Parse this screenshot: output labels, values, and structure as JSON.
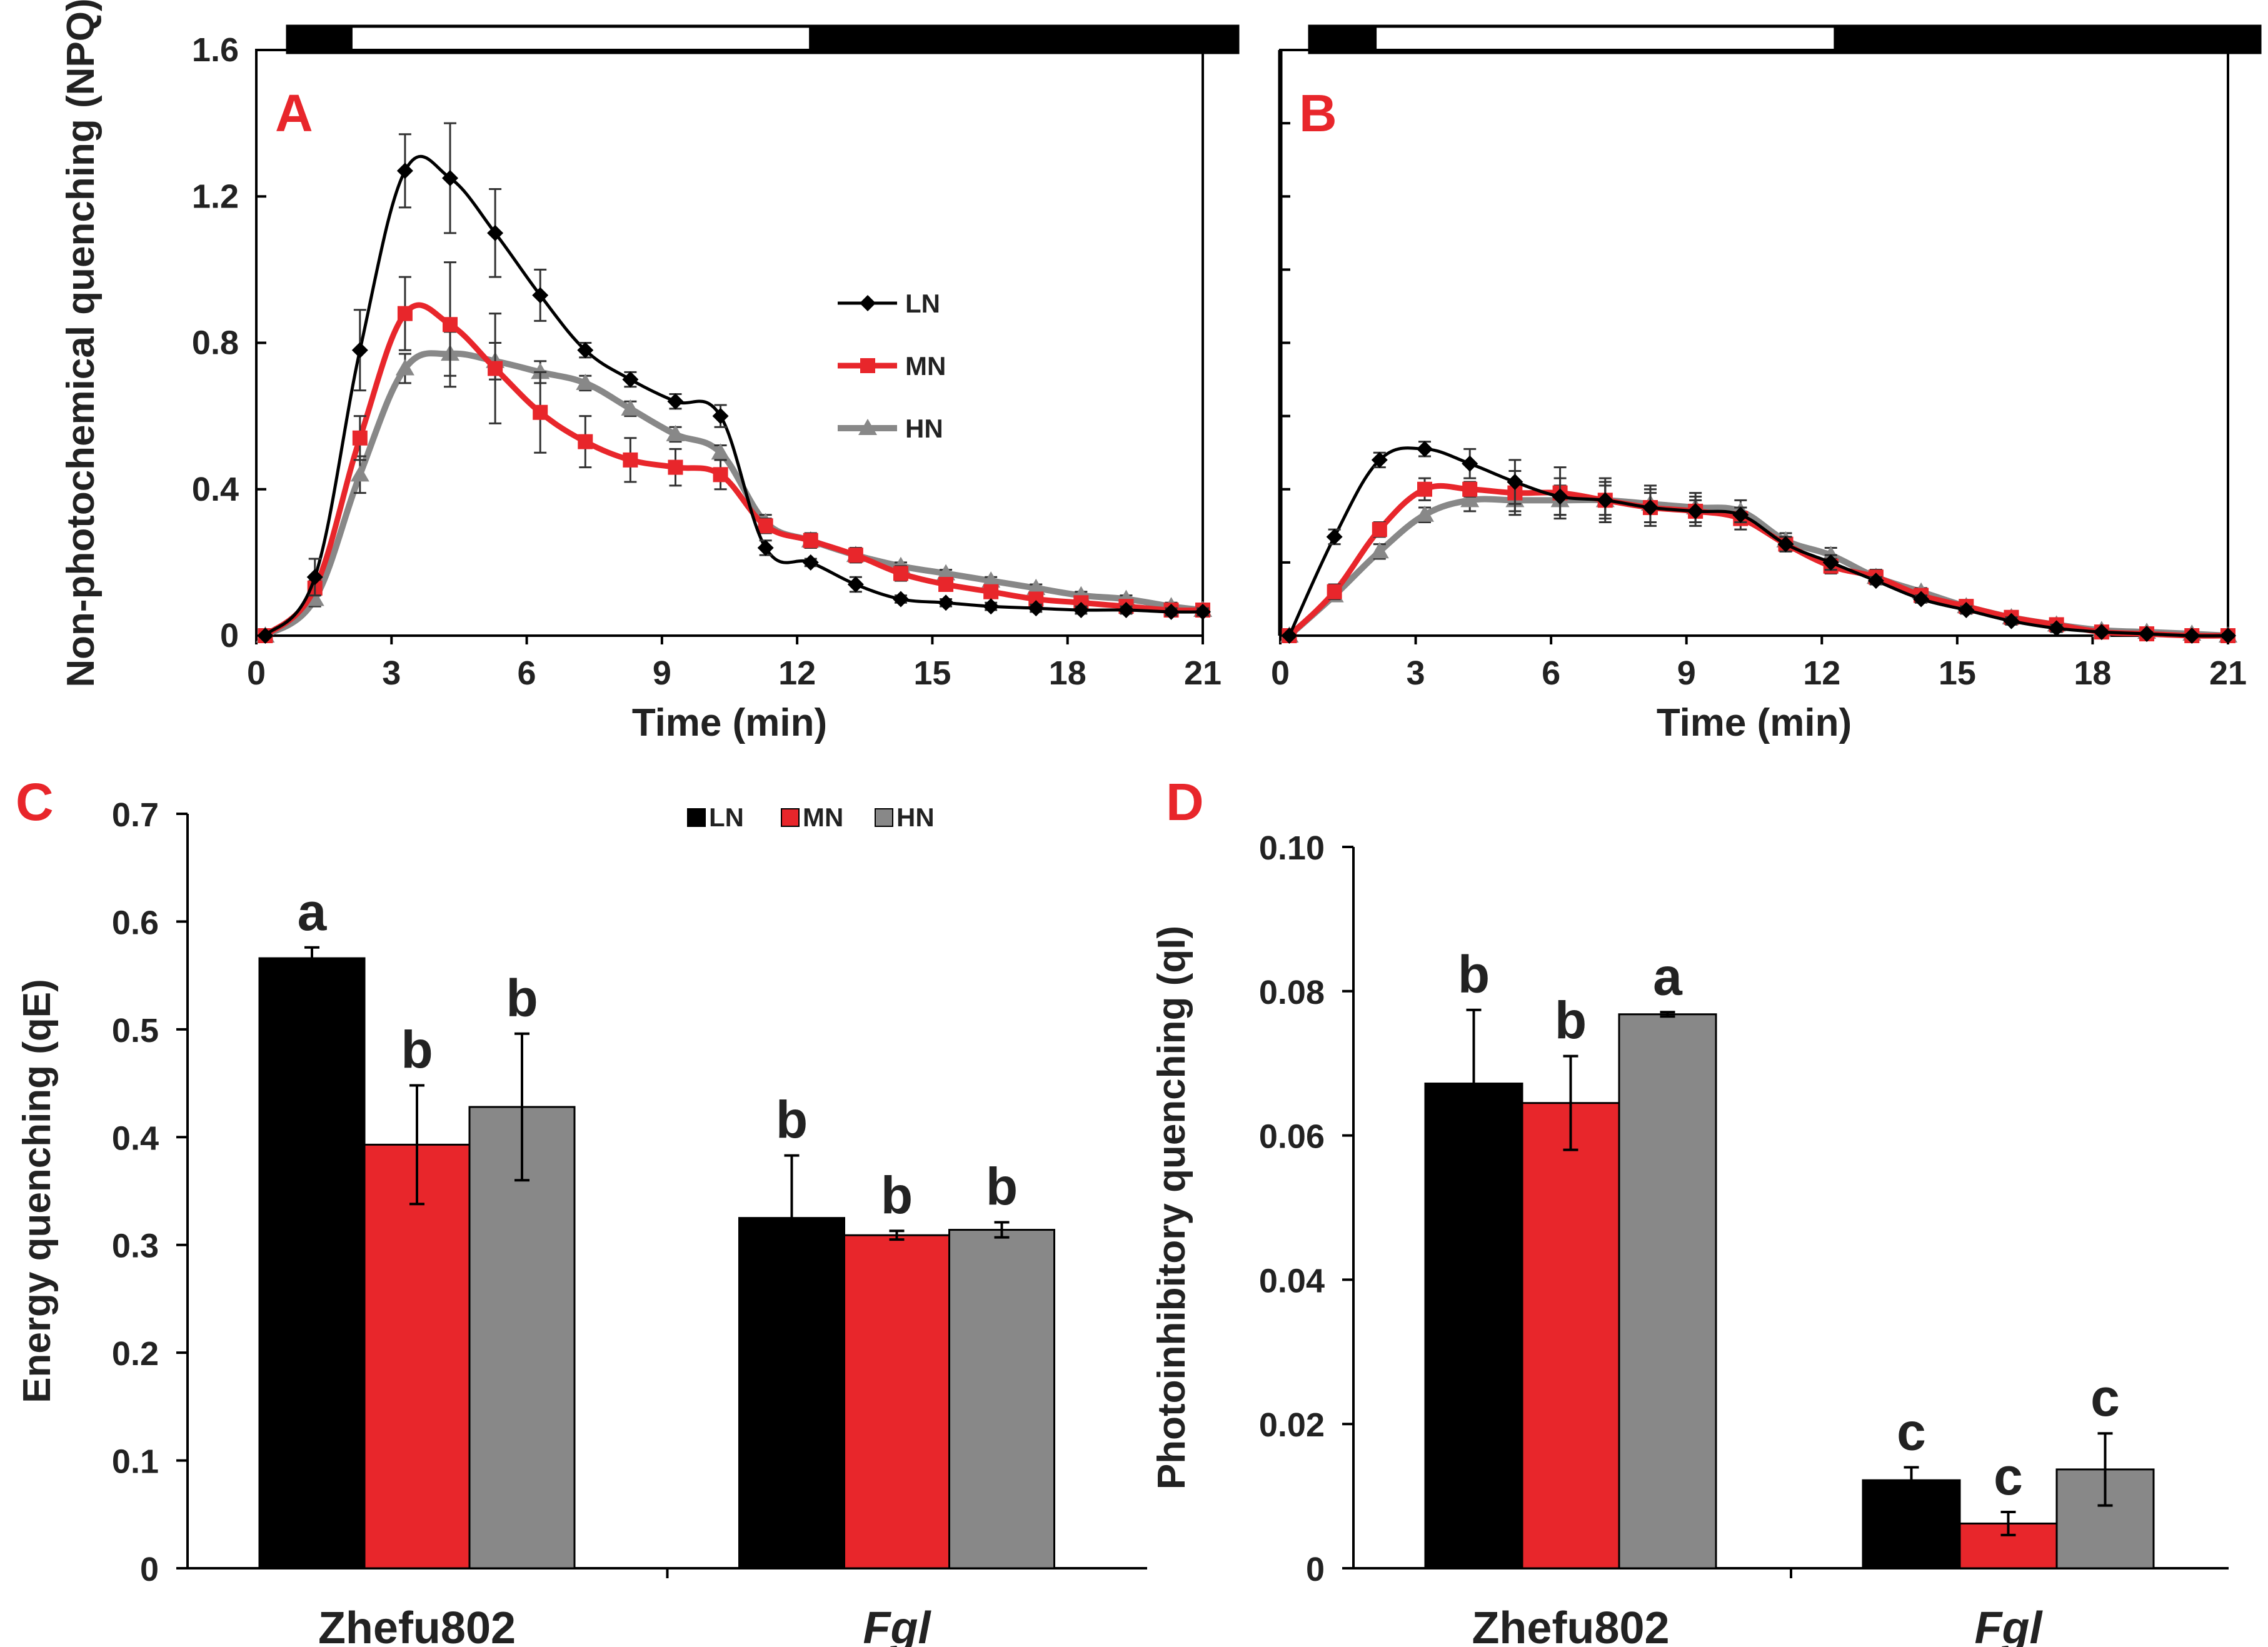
{
  "colors": {
    "LN": "#000000",
    "MN": "#e8262b",
    "HN": "#888888"
  },
  "chart_data": [
    {
      "panel": "A",
      "type": "line",
      "ylabel": "Non-photochemical quenching (NPQ)",
      "xlabel": "Time (min)",
      "xlim": [
        0,
        21
      ],
      "ylim": [
        0,
        1.6
      ],
      "xticks": [
        0,
        3,
        6,
        9,
        12,
        15,
        18,
        21
      ],
      "yticks": [
        0,
        0.4,
        0.8,
        1.2,
        1.6
      ],
      "ytick_labels": [
        "0",
        "0.4",
        "0.8",
        "1.2",
        "1.6"
      ],
      "light_bar": [
        {
          "state": "dark",
          "from": 0.7,
          "to": 2.1
        },
        {
          "state": "light",
          "from": 2.1,
          "to": 12.3
        },
        {
          "state": "dark",
          "from": 12.3,
          "to": 21
        }
      ],
      "x": [
        0.2,
        1.3,
        2.3,
        3.3,
        4.3,
        5.3,
        6.3,
        7.3,
        8.3,
        9.3,
        10.3,
        11.3,
        12.3,
        13.3,
        14.3,
        15.3,
        16.3,
        17.3,
        18.3,
        19.3,
        20.3,
        21
      ],
      "series": [
        {
          "name": "LN",
          "marker": "diamond",
          "values": [
            0.0,
            0.16,
            0.78,
            1.27,
            1.25,
            1.1,
            0.93,
            0.78,
            0.7,
            0.64,
            0.6,
            0.24,
            0.2,
            0.14,
            0.1,
            0.09,
            0.08,
            0.075,
            0.07,
            0.07,
            0.065,
            0.065
          ],
          "errors": [
            0.0,
            0.05,
            0.11,
            0.1,
            0.15,
            0.12,
            0.07,
            0.02,
            0.02,
            0.02,
            0.03,
            0.02,
            0.01,
            0.02,
            0.01,
            0.01,
            0.01,
            0.01,
            0.01,
            0.01,
            0.01,
            0.01
          ]
        },
        {
          "name": "MN",
          "marker": "square",
          "values": [
            0.0,
            0.13,
            0.54,
            0.88,
            0.85,
            0.73,
            0.61,
            0.53,
            0.48,
            0.46,
            0.44,
            0.3,
            0.26,
            0.22,
            0.17,
            0.14,
            0.12,
            0.1,
            0.09,
            0.08,
            0.07,
            0.07
          ],
          "errors": [
            0.0,
            0.02,
            0.06,
            0.1,
            0.17,
            0.15,
            0.11,
            0.07,
            0.06,
            0.05,
            0.04,
            0.02,
            0.02,
            0.02,
            0.02,
            0.01,
            0.01,
            0.01,
            0.01,
            0.01,
            0.01,
            0.01
          ]
        },
        {
          "name": "HN",
          "marker": "triangle",
          "values": [
            0.0,
            0.1,
            0.44,
            0.73,
            0.77,
            0.75,
            0.72,
            0.69,
            0.62,
            0.55,
            0.5,
            0.31,
            0.26,
            0.22,
            0.19,
            0.17,
            0.15,
            0.13,
            0.11,
            0.1,
            0.08,
            0.07
          ],
          "errors": [
            0.0,
            0.02,
            0.05,
            0.04,
            0.06,
            0.05,
            0.03,
            0.02,
            0.02,
            0.02,
            0.02,
            0.02,
            0.02,
            0.01,
            0.01,
            0.01,
            0.01,
            0.01,
            0.01,
            0.01,
            0.01,
            0.01
          ]
        }
      ],
      "legend": {
        "entries": [
          "LN",
          "MN",
          "HN"
        ],
        "placement": "center-right"
      }
    },
    {
      "panel": "B",
      "type": "line",
      "ylabel": "",
      "xlabel": "Time (min)",
      "xlim": [
        0,
        21
      ],
      "ylim": [
        0,
        1.6
      ],
      "xticks": [
        0,
        3,
        6,
        9,
        12,
        15,
        18,
        21
      ],
      "yticks": [
        0,
        0.2,
        0.4,
        0.6,
        0.8,
        1.0,
        1.2,
        1.4,
        1.6
      ],
      "light_bar": [
        {
          "state": "dark",
          "from": 0.7,
          "to": 2.1
        },
        {
          "state": "light",
          "from": 2.1,
          "to": 12.3
        },
        {
          "state": "dark",
          "from": 12.3,
          "to": 21
        }
      ],
      "x": [
        0.2,
        1.2,
        2.2,
        3.2,
        4.2,
        5.2,
        6.2,
        7.2,
        8.2,
        9.2,
        10.2,
        11.2,
        12.2,
        13.2,
        14.2,
        15.2,
        16.2,
        17.2,
        18.2,
        19.2,
        20.2,
        21
      ],
      "series": [
        {
          "name": "LN",
          "marker": "diamond",
          "values": [
            0.0,
            0.27,
            0.48,
            0.51,
            0.47,
            0.42,
            0.38,
            0.37,
            0.35,
            0.34,
            0.33,
            0.25,
            0.2,
            0.15,
            0.1,
            0.07,
            0.04,
            0.02,
            0.01,
            0.005,
            0.0,
            0.0
          ],
          "errors": [
            0.0,
            0.02,
            0.02,
            0.02,
            0.04,
            0.06,
            0.05,
            0.04,
            0.04,
            0.03,
            0.02,
            0.02,
            0.02,
            0.01,
            0.01,
            0.01,
            0.01,
            0.01,
            0.005,
            0.005,
            0.005,
            0.005
          ]
        },
        {
          "name": "MN",
          "marker": "square",
          "values": [
            0.0,
            0.12,
            0.29,
            0.4,
            0.4,
            0.39,
            0.39,
            0.37,
            0.35,
            0.34,
            0.32,
            0.25,
            0.19,
            0.16,
            0.11,
            0.08,
            0.05,
            0.03,
            0.01,
            0.005,
            0.0,
            0.0
          ],
          "errors": [
            0.0,
            0.02,
            0.02,
            0.03,
            0.02,
            0.06,
            0.07,
            0.06,
            0.05,
            0.04,
            0.03,
            0.02,
            0.02,
            0.02,
            0.01,
            0.01,
            0.01,
            0.01,
            0.005,
            0.005,
            0.005,
            0.005
          ]
        },
        {
          "name": "HN",
          "marker": "triangle",
          "values": [
            0.0,
            0.11,
            0.23,
            0.33,
            0.37,
            0.37,
            0.37,
            0.37,
            0.36,
            0.35,
            0.34,
            0.26,
            0.22,
            0.16,
            0.12,
            0.08,
            0.05,
            0.03,
            0.015,
            0.01,
            0.005,
            0.0
          ],
          "errors": [
            0.0,
            0.01,
            0.02,
            0.02,
            0.03,
            0.03,
            0.04,
            0.05,
            0.05,
            0.04,
            0.03,
            0.02,
            0.02,
            0.02,
            0.01,
            0.01,
            0.01,
            0.01,
            0.005,
            0.005,
            0.005,
            0.005
          ]
        }
      ]
    },
    {
      "panel": "C",
      "type": "bar",
      "ylabel": "Energy quenching (qE)",
      "categories": [
        "Zhefu802",
        "Fgl"
      ],
      "category_italic": [
        false,
        true
      ],
      "ylim": [
        0,
        0.7
      ],
      "yticks": [
        0,
        0.1,
        0.2,
        0.3,
        0.4,
        0.5,
        0.6,
        0.7
      ],
      "ytick_labels": [
        "0",
        "0.1",
        "0.2",
        "0.3",
        "0.4",
        "0.5",
        "0.6",
        "0.7"
      ],
      "series": [
        {
          "name": "LN",
          "values": [
            0.566,
            0.325
          ],
          "errors": [
            0.01,
            0.058
          ],
          "letters": [
            "a",
            "b"
          ]
        },
        {
          "name": "MN",
          "values": [
            0.393,
            0.309
          ],
          "errors": [
            0.055,
            0.004
          ],
          "letters": [
            "b",
            "b"
          ]
        },
        {
          "name": "HN",
          "values": [
            0.428,
            0.314
          ],
          "errors": [
            0.068,
            0.007
          ],
          "letters": [
            "b",
            "b"
          ]
        }
      ],
      "legend": {
        "entries": [
          "LN",
          "MN",
          "HN"
        ],
        "placement": "top-center"
      }
    },
    {
      "panel": "D",
      "type": "bar",
      "ylabel": "Photoinhibitory quenching (qI)",
      "categories": [
        "Zhefu802",
        "Fgl"
      ],
      "category_italic": [
        false,
        true
      ],
      "ylim": [
        0,
        0.1
      ],
      "yticks": [
        0,
        0.02,
        0.04,
        0.06,
        0.08,
        0.1
      ],
      "ytick_labels": [
        "0",
        "0.02",
        "0.04",
        "0.06",
        "0.08",
        "0.10"
      ],
      "series": [
        {
          "name": "LN",
          "values": [
            0.0672,
            0.0122
          ],
          "errors": [
            0.0102,
            0.0018
          ],
          "letters": [
            "b",
            "c"
          ]
        },
        {
          "name": "MN",
          "values": [
            0.0645,
            0.0062
          ],
          "errors": [
            0.0065,
            0.0016
          ],
          "letters": [
            "b",
            "c"
          ]
        },
        {
          "name": "HN",
          "values": [
            0.0768,
            0.0137
          ],
          "errors": [
            0.0003,
            0.005
          ],
          "letters": [
            "a",
            "c"
          ]
        }
      ]
    }
  ]
}
